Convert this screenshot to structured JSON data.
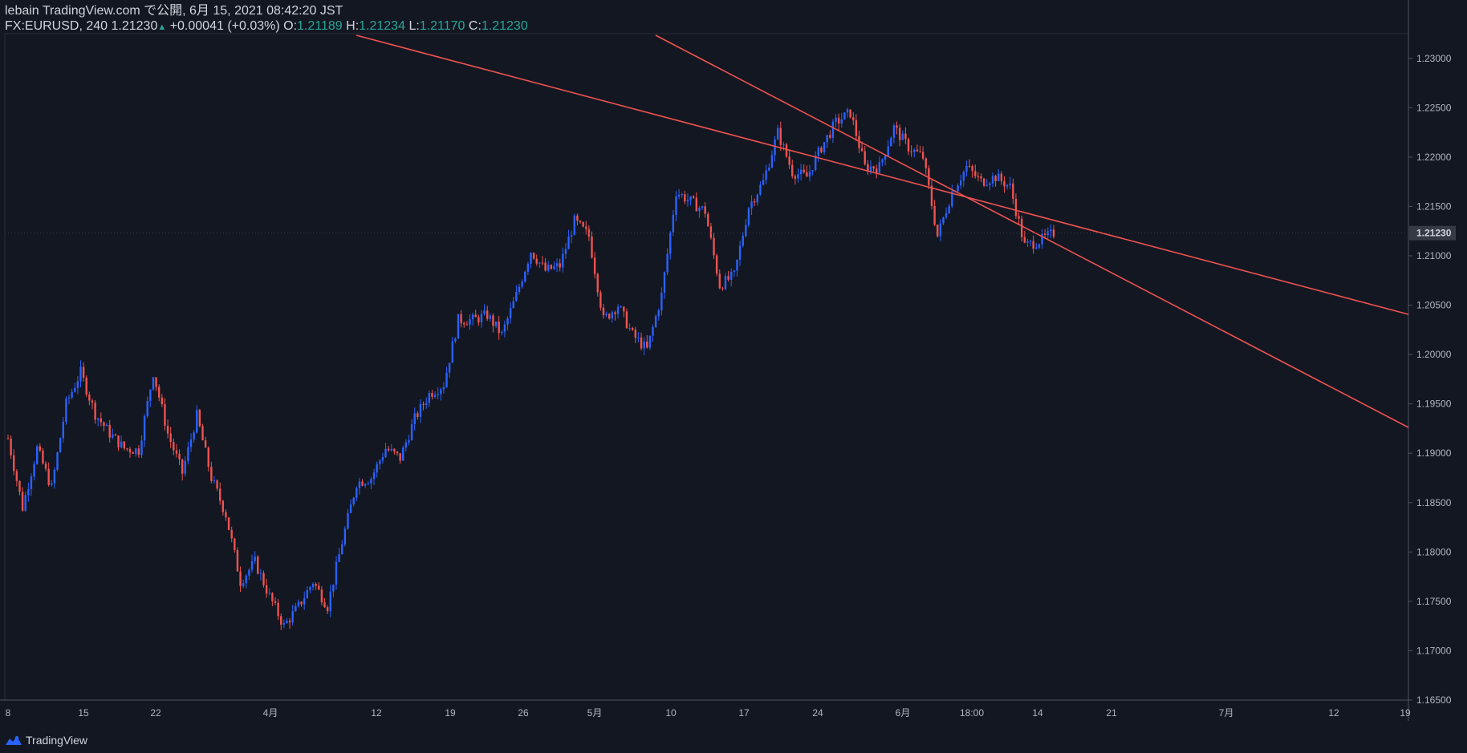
{
  "header": {
    "publish_line": "lebain TradingView.com で公開, 6月 15, 2021 08:42:20 JST",
    "symbol": "FX:EURUSD, 240",
    "last": "1.21230",
    "change_arrow": "▲",
    "change": "+0.00041 (+0.03%)",
    "o_label": "O:",
    "o": "1.21189",
    "h_label": "H:",
    "h": "1.21234",
    "l_label": "L:",
    "l": "1.21170",
    "c_label": "C:",
    "c": "1.21230"
  },
  "footer": {
    "brand": "TradingView",
    "logo_icon": "tradingview-logo-icon"
  },
  "colors": {
    "background": "#131722",
    "up": "#2962ff",
    "down": "#ef5350",
    "trendline": "#ef5350",
    "axis_text": "#b2b5be",
    "price_label_bg": "#363a45"
  },
  "chart_data": {
    "type": "candlestick",
    "title": "FX:EURUSD, 240",
    "xlabel": "",
    "ylabel": "",
    "ylim": [
      1.165,
      1.2325
    ],
    "x_ticks": [
      "8",
      "15",
      "22",
      "4月",
      "12",
      "19",
      "26",
      "5月",
      "10",
      "17",
      "24",
      "6月",
      "18:00",
      "14",
      "21",
      "7月",
      "12",
      "19"
    ],
    "y_ticks": [
      "1.23000",
      "1.22500",
      "1.22000",
      "1.21500",
      "1.21000",
      "1.20500",
      "1.20000",
      "1.19500",
      "1.19000",
      "1.18500",
      "1.18000",
      "1.17500",
      "1.17000",
      "1.16500"
    ],
    "last_price": "1.21230",
    "price_path": [
      [
        "8",
        1.1915
      ],
      [
        "9",
        1.1845
      ],
      [
        "10",
        1.1905
      ],
      [
        "11",
        1.1865
      ],
      [
        "12",
        1.195
      ],
      [
        "13",
        1.1982
      ],
      [
        "15",
        1.194
      ],
      [
        "16",
        1.192
      ],
      [
        "17",
        1.1905
      ],
      [
        "18",
        1.1903
      ],
      [
        "19",
        1.1982
      ],
      [
        "20",
        1.192
      ],
      [
        "22",
        1.188
      ],
      [
        "23",
        1.1938
      ],
      [
        "24",
        1.1875
      ],
      [
        "25",
        1.1838
      ],
      [
        "26",
        1.177
      ],
      [
        "29",
        1.179
      ],
      [
        "30",
        1.1755
      ],
      [
        "31",
        1.1725
      ],
      [
        "4月",
        1.1745
      ],
      [
        "2",
        1.177
      ],
      [
        "5",
        1.1745
      ],
      [
        "6",
        1.181
      ],
      [
        "8",
        1.187
      ],
      [
        "9",
        1.1875
      ],
      [
        "12",
        1.1905
      ],
      [
        "13",
        1.1895
      ],
      [
        "14",
        1.1935
      ],
      [
        "15",
        1.196
      ],
      [
        "16",
        1.197
      ],
      [
        "19",
        1.2035
      ],
      [
        "20",
        1.2035
      ],
      [
        "21",
        1.204
      ],
      [
        "22",
        1.202
      ],
      [
        "23",
        1.206
      ],
      [
        "26",
        1.2105
      ],
      [
        "27",
        1.2085
      ],
      [
        "28",
        1.209
      ],
      [
        "29",
        1.2135
      ],
      [
        "30",
        1.212
      ],
      [
        "5月",
        1.2035
      ],
      [
        "4",
        1.205
      ],
      [
        "5",
        1.202
      ],
      [
        "6",
        1.2005
      ],
      [
        "7",
        1.206
      ],
      [
        "10",
        1.2165
      ],
      [
        "11",
        1.2155
      ],
      [
        "12",
        1.2145
      ],
      [
        "13",
        1.207
      ],
      [
        "14",
        1.208
      ],
      [
        "17",
        1.215
      ],
      [
        "18",
        1.2175
      ],
      [
        "19",
        1.2225
      ],
      [
        "20",
        1.2185
      ],
      [
        "21",
        1.218
      ],
      [
        "24",
        1.221
      ],
      [
        "25",
        1.2235
      ],
      [
        "26",
        1.2245
      ],
      [
        "27",
        1.219
      ],
      [
        "28",
        1.219
      ],
      [
        "31",
        1.223
      ],
      [
        "6月",
        1.221
      ],
      [
        "2",
        1.22
      ],
      [
        "3",
        1.212
      ],
      [
        "4",
        1.2165
      ],
      [
        "7",
        1.219
      ],
      [
        "8",
        1.2175
      ],
      [
        "9",
        1.218
      ],
      [
        "10",
        1.217
      ],
      [
        "11",
        1.211
      ],
      [
        "14",
        1.2115
      ],
      [
        "15",
        1.2123
      ]
    ],
    "trendlines": [
      {
        "from": [
          "3月4",
          1.2375
        ],
        "to": [
          "6月30",
          1.2047
        ]
      },
      {
        "from": [
          "4月2",
          1.237
        ],
        "to": [
          "7月19",
          1.193
        ]
      }
    ],
    "grid": false,
    "legend": "none"
  }
}
